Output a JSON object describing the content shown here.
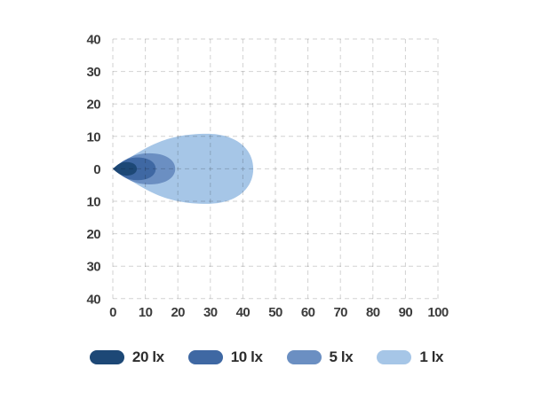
{
  "chart_data": {
    "type": "area",
    "title": "",
    "xlabel": "",
    "ylabel": "",
    "x_axis": {
      "range": [
        0,
        100
      ],
      "ticks": [
        0,
        10,
        20,
        30,
        40,
        50,
        60,
        70,
        80,
        90,
        100
      ],
      "tick_labels": [
        "0",
        "10",
        "20",
        "30",
        "40",
        "50",
        "60",
        "70",
        "80",
        "90",
        "100"
      ]
    },
    "y_axis": {
      "range": [
        -40,
        40
      ],
      "ticks": [
        40,
        30,
        20,
        10,
        0,
        -10,
        -20,
        -30,
        -40
      ],
      "tick_labels": [
        "40",
        "30",
        "20",
        "10",
        "0",
        "10",
        "20",
        "30",
        "40"
      ]
    },
    "grid": true,
    "grid_style": "dashed",
    "grid_color": "#d2d2d2",
    "legend_position": "bottom",
    "series": [
      {
        "label": "20 lx",
        "color": "#1d4876",
        "origin": [
          0,
          0
        ],
        "reach": 7.4,
        "half_width": 2.1,
        "peak_x": 4.2
      },
      {
        "label": "10 lx",
        "color": "#3f68a3",
        "origin": [
          0,
          0
        ],
        "reach": 13.2,
        "half_width": 3.5,
        "peak_x": 7.6
      },
      {
        "label": "5 lx",
        "color": "#6b8fc2",
        "origin": [
          0,
          0
        ],
        "reach": 19.2,
        "half_width": 4.8,
        "peak_x": 11.3
      },
      {
        "label": "1 lx",
        "color": "#a6c6e7",
        "origin": [
          0,
          0
        ],
        "reach": 43.2,
        "half_width": 10.8,
        "peak_x": 29.0
      }
    ]
  },
  "colors": {
    "background": "#ffffff",
    "tick_text": "#3b3b3b",
    "legend_text": "#2d2d2d"
  }
}
